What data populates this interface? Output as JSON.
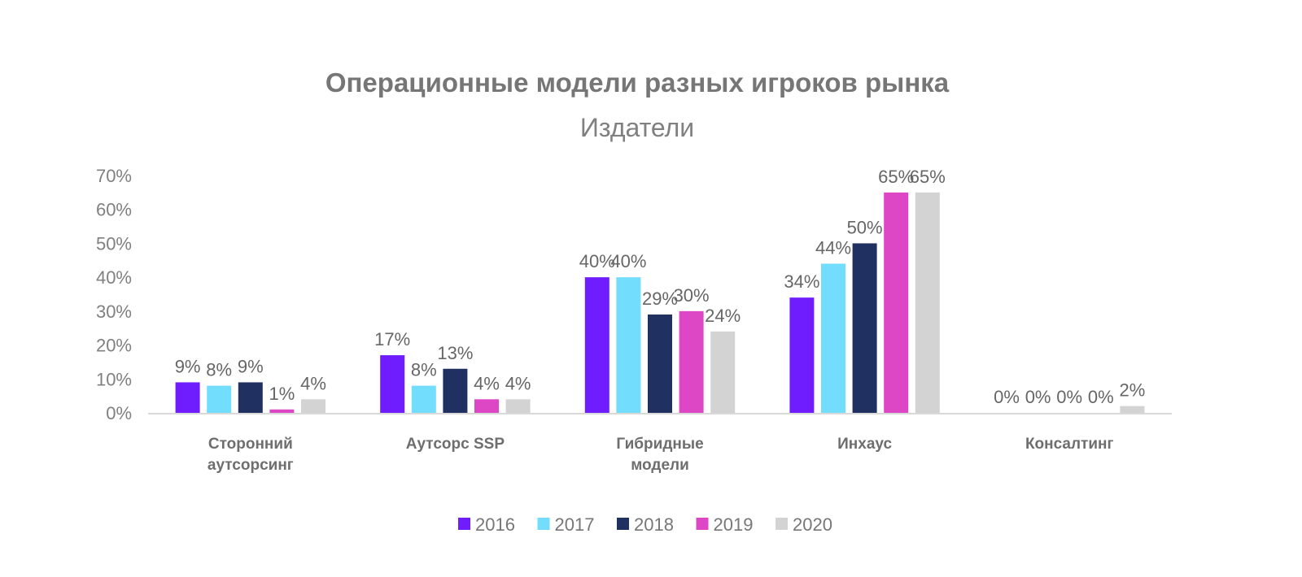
{
  "chart_data": {
    "type": "bar",
    "title": "Операционные модели разных игроков рынка",
    "subtitle": "Издатели",
    "xlabel": "",
    "ylabel": "",
    "ylim": [
      0,
      70
    ],
    "yticks": [
      "0%",
      "10%",
      "20%",
      "30%",
      "40%",
      "50%",
      "60%",
      "70%"
    ],
    "grid": false,
    "legend_position": "bottom",
    "categories": [
      [
        "Сторонний",
        "аутсорсинг"
      ],
      [
        "Аутсорс SSP"
      ],
      [
        "Гибридные",
        "модели"
      ],
      [
        "Инхаус"
      ],
      [
        "Консалтинг"
      ]
    ],
    "series": [
      {
        "name": "2016",
        "color": "#6f1cff",
        "values": [
          9,
          17,
          40,
          34,
          0
        ]
      },
      {
        "name": "2017",
        "color": "#72ddfd",
        "values": [
          8,
          8,
          40,
          44,
          0
        ]
      },
      {
        "name": "2018",
        "color": "#203060",
        "values": [
          9,
          13,
          29,
          50,
          0
        ]
      },
      {
        "name": "2019",
        "color": "#dd47c5",
        "values": [
          1,
          4,
          30,
          65,
          0
        ]
      },
      {
        "name": "2020",
        "color": "#d3d3d3",
        "values": [
          4,
          4,
          24,
          65,
          2
        ]
      }
    ],
    "value_suffix": "%"
  }
}
